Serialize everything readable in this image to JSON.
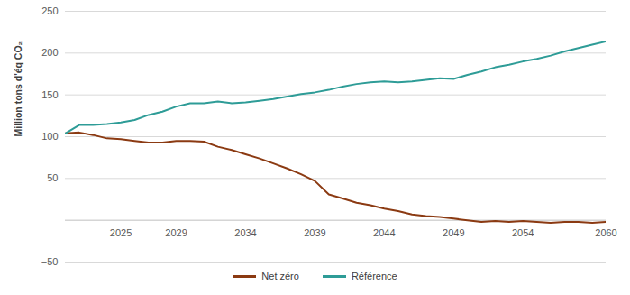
{
  "chart_data": {
    "type": "line",
    "y_label": "Million tons d'éq CO₂",
    "x": [
      2021,
      2022,
      2023,
      2024,
      2025,
      2026,
      2027,
      2028,
      2029,
      2030,
      2031,
      2032,
      2033,
      2034,
      2035,
      2036,
      2037,
      2038,
      2039,
      2040,
      2041,
      2042,
      2043,
      2044,
      2045,
      2046,
      2047,
      2048,
      2049,
      2050,
      2051,
      2052,
      2053,
      2054,
      2055,
      2056,
      2057,
      2058,
      2059,
      2060
    ],
    "series": [
      {
        "name": "Net zéro",
        "color": "#8b3a12",
        "values": [
          104,
          105,
          102,
          98,
          97,
          95,
          93,
          93,
          95,
          95,
          94,
          88,
          84,
          79,
          74,
          68,
          62,
          55,
          47,
          31,
          26,
          21,
          18,
          14,
          11,
          7,
          5,
          4,
          2,
          0,
          -2,
          -1,
          -2,
          -1,
          -2,
          -3,
          -2,
          -2,
          -3,
          -2
        ]
      },
      {
        "name": "Référence",
        "color": "#2e9c97",
        "values": [
          104,
          114,
          114,
          115,
          117,
          120,
          126,
          130,
          136,
          140,
          140,
          142,
          140,
          141,
          143,
          145,
          148,
          151,
          153,
          156,
          160,
          163,
          165,
          166,
          165,
          166,
          168,
          170,
          169,
          174,
          178,
          183,
          186,
          190,
          193,
          197,
          202,
          206,
          210,
          214
        ]
      }
    ],
    "xlim": [
      2021,
      2060
    ],
    "xticks": [
      2025,
      2029,
      2034,
      2039,
      2044,
      2049,
      2054,
      2060
    ],
    "ylim": [
      -50,
      250
    ],
    "yticks": [
      -50,
      50,
      100,
      150,
      200,
      250
    ],
    "grid": true,
    "legend": "bottom"
  }
}
